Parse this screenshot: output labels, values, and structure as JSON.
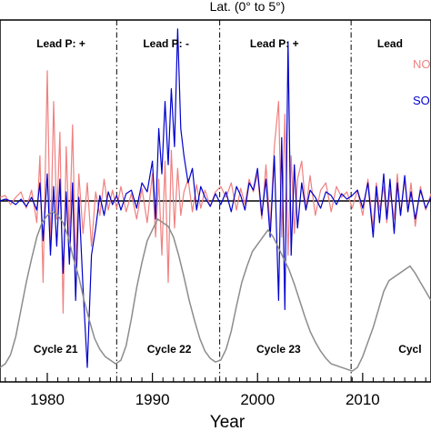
{
  "chart_data": {
    "type": "line",
    "title": "Lat. (0° to 5°)",
    "xlabel": "Year",
    "xlim": [
      1975.5,
      2016.5
    ],
    "x_ticks": [
      1980,
      1990,
      2000,
      2010
    ],
    "x_tick_labels": [
      "1980",
      "1990",
      "2000",
      "2010"
    ],
    "ylim": [
      -1,
      1
    ],
    "zero_line": 0,
    "cycle_boundaries": [
      1986.6,
      1996.4,
      2008.9
    ],
    "lead_polarity_labels": [
      {
        "x": 1981.3,
        "text": "Lead P: +"
      },
      {
        "x": 1991.3,
        "text": "Lead P: -"
      },
      {
        "x": 2001.6,
        "text": "Lead P: +"
      },
      {
        "x": 2012.6,
        "text": "Lead"
      }
    ],
    "cycle_labels": [
      {
        "x": 1980.8,
        "text": "Cycle 21"
      },
      {
        "x": 1991.6,
        "text": "Cycle 22"
      },
      {
        "x": 2002.0,
        "text": "Cycle 23"
      },
      {
        "x": 2014.5,
        "text": "Cycl"
      }
    ],
    "legend": {
      "position": "top-right",
      "entries": [
        "NO",
        "SO"
      ]
    },
    "series": [
      {
        "name": "NO",
        "color": "#f08080",
        "x": [
          1975.5,
          1976,
          1976.5,
          1977,
          1977.5,
          1978,
          1978.5,
          1979,
          1979.3,
          1979.6,
          1980,
          1980.3,
          1980.6,
          1980.9,
          1981.2,
          1981.5,
          1981.8,
          1982.1,
          1982.4,
          1982.7,
          1983,
          1983.4,
          1983.8,
          1984.2,
          1984.6,
          1985,
          1985.4,
          1985.8,
          1986.2,
          1986.6,
          1987,
          1987.5,
          1988,
          1988.5,
          1989,
          1989.5,
          1990,
          1990.3,
          1990.6,
          1990.9,
          1991.2,
          1991.5,
          1991.8,
          1992.1,
          1992.4,
          1992.7,
          1993,
          1993.4,
          1993.8,
          1994.2,
          1994.6,
          1995,
          1995.5,
          1996,
          1996.5,
          1997,
          1997.5,
          1998,
          1998.4,
          1998.8,
          1999.2,
          1999.6,
          2000,
          2000.4,
          2000.8,
          2001.2,
          2001.6,
          2002,
          2002.3,
          2002.6,
          2002.9,
          2003.2,
          2003.5,
          2003.8,
          2004.2,
          2004.6,
          2005,
          2005.5,
          2006,
          2006.5,
          2007,
          2007.5,
          2008,
          2008.5,
          2009,
          2009.5,
          2010,
          2010.5,
          2011,
          2011.3,
          2011.6,
          2012,
          2012.3,
          2012.6,
          2013,
          2013.3,
          2013.6,
          2014,
          2014.3,
          2014.6,
          2015,
          2015.5,
          2016,
          2016.5
        ],
        "values": [
          0.02,
          0.03,
          -0.02,
          0.02,
          0.05,
          -0.04,
          0.06,
          -0.12,
          0.25,
          -0.45,
          0.72,
          -0.28,
          0.55,
          -0.1,
          0.38,
          -0.62,
          0.3,
          -0.2,
          0.42,
          -0.35,
          0.15,
          -0.18,
          0.1,
          -0.25,
          0.05,
          -0.08,
          0.12,
          -0.05,
          0.06,
          -0.04,
          0.08,
          -0.06,
          0.04,
          -0.1,
          0.07,
          -0.12,
          0.15,
          -0.2,
          0.12,
          -0.3,
          0.22,
          -0.45,
          0.28,
          -0.15,
          0.18,
          -0.08,
          0.05,
          0.12,
          -0.06,
          0.09,
          -0.04,
          0.06,
          -0.03,
          0.05,
          0.08,
          0.02,
          0.1,
          -0.05,
          0.07,
          -0.02,
          0.12,
          0.05,
          0.15,
          -0.1,
          0.2,
          -0.15,
          0.3,
          0.55,
          -0.2,
          0.48,
          -0.3,
          0.25,
          -0.18,
          0.12,
          0.22,
          -0.05,
          0.14,
          -0.08,
          0.06,
          0.1,
          -0.06,
          0.08,
          0.02,
          0.05,
          -0.04,
          0.06,
          -0.08,
          0.12,
          -0.15,
          0.1,
          -0.05,
          0.08,
          -0.12,
          0.06,
          -0.1,
          0.15,
          -0.08,
          0.12,
          -0.06,
          0.1,
          -0.14,
          0.08,
          -0.05,
          0.04
        ]
      },
      {
        "name": "SO",
        "color": "#0000cc",
        "x": [
          1975.5,
          1976,
          1976.5,
          1977,
          1977.5,
          1978,
          1978.5,
          1979,
          1979.3,
          1979.6,
          1980,
          1980.3,
          1980.6,
          1980.9,
          1981.2,
          1981.5,
          1981.8,
          1982.1,
          1982.4,
          1982.7,
          1983,
          1983.4,
          1983.8,
          1984.2,
          1984.6,
          1985,
          1985.4,
          1985.8,
          1986.2,
          1986.6,
          1987,
          1987.5,
          1988,
          1988.5,
          1989,
          1989.5,
          1990,
          1990.3,
          1990.6,
          1990.9,
          1991.2,
          1991.5,
          1991.8,
          1992.1,
          1992.4,
          1992.7,
          1993,
          1993.4,
          1993.8,
          1994.2,
          1994.6,
          1995,
          1995.5,
          1996,
          1996.5,
          1997,
          1997.5,
          1998,
          1998.4,
          1998.8,
          1999.2,
          1999.6,
          2000,
          2000.4,
          2000.8,
          2001.2,
          2001.6,
          2002,
          2002.3,
          2002.6,
          2002.9,
          2003.2,
          2003.5,
          2003.8,
          2004.2,
          2004.6,
          2005,
          2005.5,
          2006,
          2006.5,
          2007,
          2007.5,
          2008,
          2008.5,
          2009,
          2009.5,
          2010,
          2010.5,
          2011,
          2011.3,
          2011.6,
          2012,
          2012.3,
          2012.6,
          2013,
          2013.3,
          2013.6,
          2014,
          2014.3,
          2014.6,
          2015,
          2015.5,
          2016,
          2016.5
        ],
        "values": [
          0.0,
          0.01,
          0.0,
          -0.02,
          0.01,
          -0.03,
          0.02,
          -0.05,
          0.1,
          -0.22,
          0.15,
          -0.3,
          0.08,
          -0.25,
          0.12,
          -0.4,
          0.05,
          -0.35,
          0.1,
          -0.55,
          0.02,
          -0.48,
          -0.92,
          -0.3,
          -0.15,
          0.03,
          -0.08,
          0.05,
          -0.02,
          0.03,
          -0.05,
          0.04,
          0.06,
          -0.04,
          0.1,
          0.05,
          0.22,
          -0.1,
          0.4,
          0.15,
          0.55,
          0.2,
          0.62,
          0.3,
          0.95,
          0.4,
          0.25,
          0.1,
          0.18,
          -0.05,
          0.08,
          0.02,
          -0.03,
          0.04,
          -0.02,
          0.05,
          -0.06,
          0.08,
          0.03,
          -0.05,
          0.1,
          0.06,
          0.18,
          -0.08,
          0.12,
          -0.2,
          0.25,
          -0.55,
          0.35,
          -0.6,
          0.88,
          -0.3,
          0.2,
          -0.15,
          0.1,
          -0.05,
          0.06,
          0.02,
          -0.04,
          0.05,
          0.03,
          -0.02,
          0.04,
          0.01,
          0.03,
          0.06,
          -0.04,
          0.1,
          -0.2,
          0.08,
          -0.12,
          0.15,
          -0.1,
          0.12,
          -0.18,
          0.1,
          -0.08,
          0.14,
          -0.06,
          0.05,
          -0.1,
          0.06,
          -0.04,
          0.02
        ]
      },
      {
        "name": "",
        "color": "#8c8c8c",
        "x": [
          1975.5,
          1976,
          1976.5,
          1977,
          1977.5,
          1978,
          1978.5,
          1979,
          1979.5,
          1980,
          1980.5,
          1981,
          1981.5,
          1982,
          1982.5,
          1983,
          1983.5,
          1984,
          1984.5,
          1985,
          1985.5,
          1986,
          1986.5,
          1987,
          1987.5,
          1988,
          1988.5,
          1989,
          1989.5,
          1990,
          1990.5,
          1991,
          1991.5,
          1992,
          1992.5,
          1993,
          1993.5,
          1994,
          1994.5,
          1995,
          1995.5,
          1996,
          1996.5,
          1997,
          1997.5,
          1998,
          1998.5,
          1999,
          1999.5,
          2000,
          2000.5,
          2001,
          2001.5,
          2002,
          2002.5,
          2003,
          2003.5,
          2004,
          2004.5,
          2005,
          2005.5,
          2006,
          2006.5,
          2007,
          2007.5,
          2008,
          2008.5,
          2009,
          2009.5,
          2010,
          2010.5,
          2011,
          2011.5,
          2012,
          2012.5,
          2013,
          2013.5,
          2014,
          2014.5,
          2015,
          2015.5,
          2016,
          2016.5
        ],
        "values": [
          -0.92,
          -0.9,
          -0.85,
          -0.75,
          -0.6,
          -0.45,
          -0.32,
          -0.2,
          -0.12,
          -0.08,
          -0.06,
          -0.08,
          -0.12,
          -0.2,
          -0.32,
          -0.42,
          -0.55,
          -0.66,
          -0.76,
          -0.82,
          -0.86,
          -0.88,
          -0.9,
          -0.88,
          -0.8,
          -0.65,
          -0.48,
          -0.34,
          -0.22,
          -0.16,
          -0.1,
          -0.12,
          -0.14,
          -0.2,
          -0.3,
          -0.42,
          -0.55,
          -0.66,
          -0.76,
          -0.83,
          -0.87,
          -0.89,
          -0.88,
          -0.82,
          -0.72,
          -0.58,
          -0.45,
          -0.36,
          -0.28,
          -0.24,
          -0.2,
          -0.16,
          -0.2,
          -0.26,
          -0.32,
          -0.38,
          -0.46,
          -0.55,
          -0.64,
          -0.72,
          -0.78,
          -0.83,
          -0.87,
          -0.9,
          -0.91,
          -0.92,
          -0.93,
          -0.94,
          -0.92,
          -0.86,
          -0.78,
          -0.7,
          -0.6,
          -0.5,
          -0.44,
          -0.42,
          -0.4,
          -0.38,
          -0.36,
          -0.4,
          -0.45,
          -0.5,
          -0.55
        ]
      }
    ]
  }
}
